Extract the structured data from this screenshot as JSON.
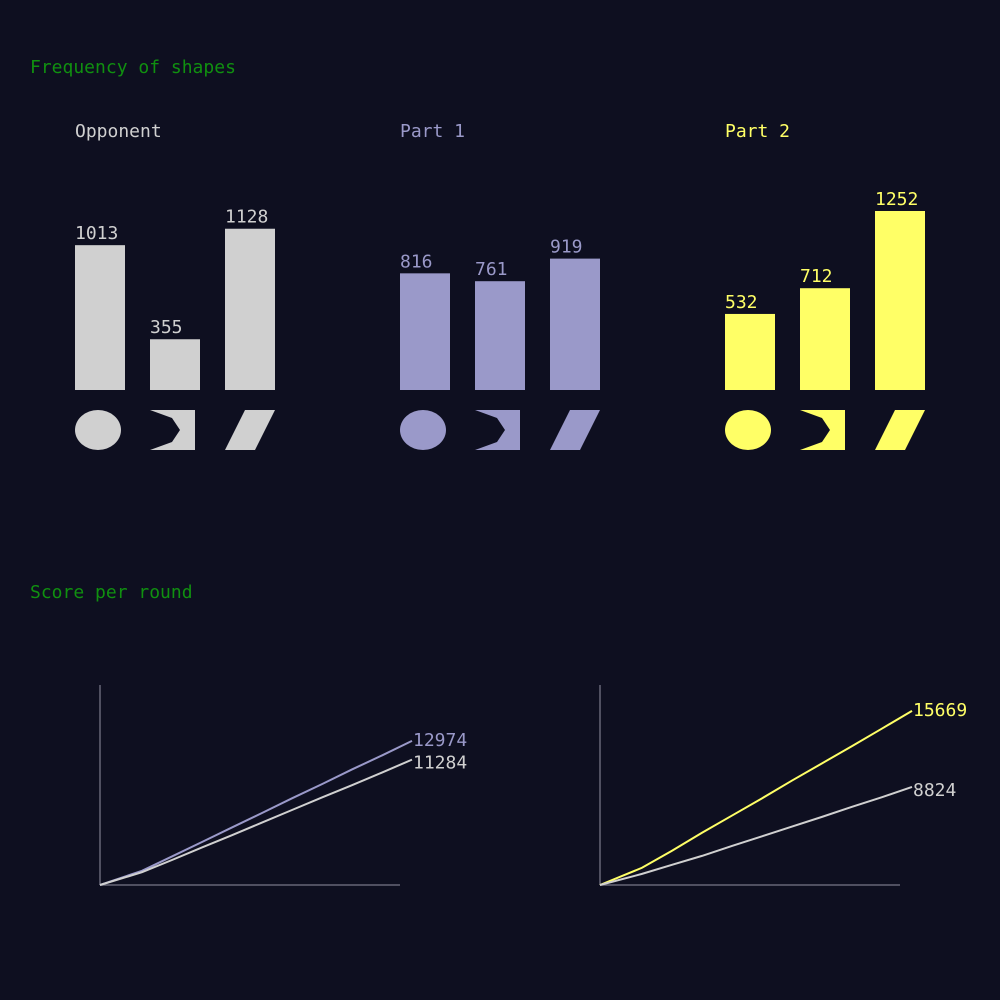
{
  "sections": {
    "frequency_title": "Frequency of shapes",
    "score_title": "Score per round"
  },
  "colors": {
    "background": "#0e0f20",
    "section_title": "#109010",
    "opponent": "#d0d0d0",
    "part1": "#9a99c9",
    "part2": "#ffff66",
    "axis": "#666677"
  },
  "chart_data": [
    {
      "type": "bar",
      "title": "Opponent",
      "color_key": "opponent",
      "categories": [
        "circle-icon",
        "chevron-icon",
        "parallelogram-icon"
      ],
      "values": [
        1013,
        355,
        1128
      ],
      "ylim": [
        0,
        1252
      ]
    },
    {
      "type": "bar",
      "title": "Part 1",
      "color_key": "part1",
      "categories": [
        "circle-icon",
        "chevron-icon",
        "parallelogram-icon"
      ],
      "values": [
        816,
        761,
        919
      ],
      "ylim": [
        0,
        1252
      ]
    },
    {
      "type": "bar",
      "title": "Part 2",
      "color_key": "part2",
      "categories": [
        "circle-icon",
        "chevron-icon",
        "parallelogram-icon"
      ],
      "values": [
        532,
        712,
        1252
      ],
      "ylim": [
        0,
        1252
      ]
    },
    {
      "type": "line",
      "title": "",
      "x": [
        0,
        1,
        2,
        3,
        4,
        5,
        6,
        7,
        8,
        9,
        10
      ],
      "series": [
        {
          "color_key": "part1",
          "values": [
            0,
            1280,
            2570,
            3870,
            5180,
            6480,
            7800,
            9080,
            10400,
            11660,
            12974
          ]
        },
        {
          "color_key": "opponent",
          "values": [
            0,
            1150,
            2250,
            3380,
            4480,
            5620,
            6750,
            7880,
            8980,
            10120,
            11284
          ]
        }
      ],
      "end_labels": [
        "12974",
        "11284"
      ],
      "ylim": [
        0,
        18000
      ]
    },
    {
      "type": "line",
      "title": "",
      "x": [
        0,
        1,
        2,
        3,
        4,
        5,
        6,
        7,
        8,
        9,
        10
      ],
      "series": [
        {
          "color_key": "part2",
          "values": [
            0,
            1550,
            3080,
            4700,
            6250,
            7800,
            9400,
            10950,
            12500,
            14080,
            15669
          ]
        },
        {
          "color_key": "opponent",
          "values": [
            0,
            1000,
            1820,
            2620,
            3520,
            4380,
            5260,
            6130,
            7040,
            7900,
            8824
          ]
        }
      ],
      "end_labels": [
        "15669",
        "8824"
      ],
      "ylim": [
        0,
        18000
      ]
    }
  ]
}
